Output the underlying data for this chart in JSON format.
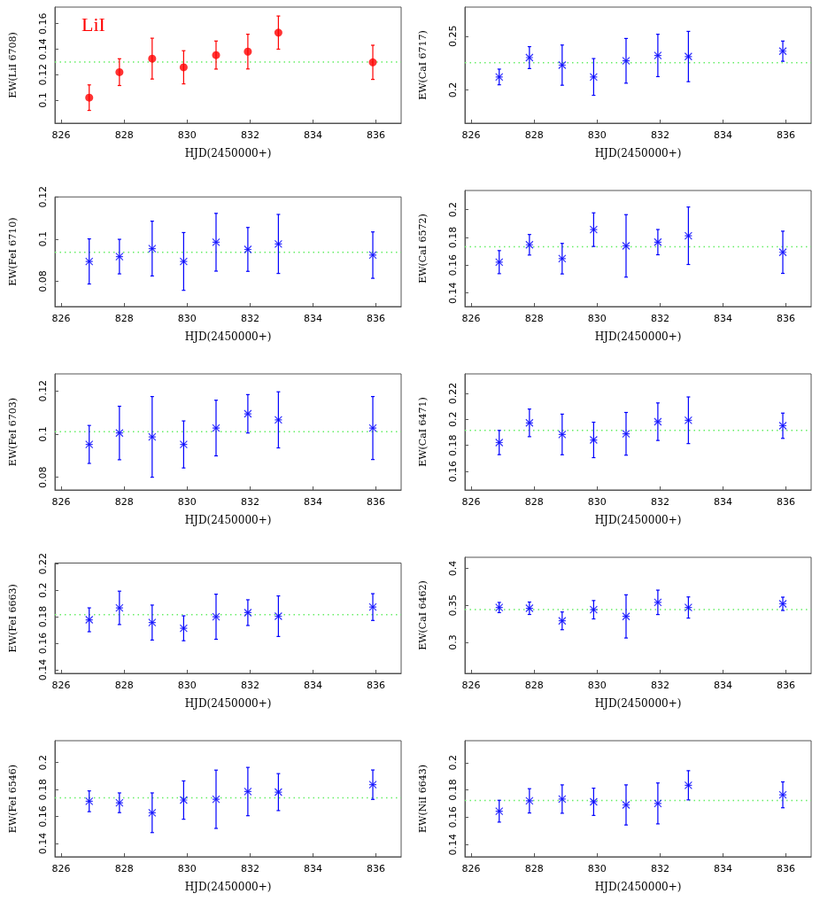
{
  "chart_data": [
    {
      "type": "scatter",
      "annotations": [
        "LiI"
      ],
      "xlabel": "HJD(2450000+)",
      "ylabel": "EW(LiI 6708)",
      "xlim": [
        825.8,
        836.8
      ],
      "xticks": [
        826,
        828,
        830,
        832,
        834,
        836
      ],
      "ylim": [
        0.082,
        0.173
      ],
      "yticks": [
        0.1,
        0.12,
        0.14,
        0.16
      ],
      "marker": "circle",
      "x": [
        826.89,
        827.85,
        828.89,
        829.89,
        830.92,
        831.93,
        832.9,
        835.9
      ],
      "series": [
        {
          "color": "#ff0000",
          "values": [
            0.102,
            0.122,
            0.1326,
            0.1258,
            0.1354,
            0.1381,
            0.153,
            0.1297
          ],
          "errors": [
            0.01,
            0.0105,
            0.016,
            0.013,
            0.011,
            0.0136,
            0.013,
            0.0134
          ]
        }
      ],
      "ref_lines": [
        {
          "axis": "y",
          "value": 0.13,
          "color": "#66ee66",
          "line_style": "dotted"
        }
      ]
    },
    {
      "type": "scatter",
      "xlabel": "HJD(2450000+)",
      "ylabel": "EW(CaI 6717)",
      "xlim": [
        825.8,
        836.8
      ],
      "xticks": [
        826,
        828,
        830,
        832,
        834,
        836
      ],
      "ylim": [
        0.169,
        0.277
      ],
      "yticks": [
        0.2,
        0.25
      ],
      "marker": "cross",
      "x": [
        826.89,
        827.85,
        828.89,
        829.89,
        830.92,
        831.93,
        832.9,
        835.9
      ],
      "series": [
        {
          "color": "#0000ff",
          "values": [
            0.212,
            0.23,
            0.223,
            0.212,
            0.227,
            0.232,
            0.231,
            0.236
          ],
          "errors": [
            0.0073,
            0.0102,
            0.0187,
            0.0171,
            0.0208,
            0.0197,
            0.0234,
            0.0094
          ]
        }
      ],
      "ref_lines": [
        {
          "axis": "y",
          "value": 0.2253,
          "color": "#66ee66",
          "line_style": "dotted"
        }
      ]
    },
    {
      "type": "scatter",
      "xlabel": "HJD(2450000+)",
      "ylabel": "EW(FeI 6710)",
      "xlim": [
        825.8,
        836.8
      ],
      "xticks": [
        826,
        828,
        830,
        832,
        834,
        836
      ],
      "ylim": [
        0.068,
        0.12
      ],
      "yticks": [
        0.08,
        0.1,
        0.12
      ],
      "marker": "cross",
      "x": [
        826.89,
        827.85,
        828.89,
        829.89,
        830.92,
        831.93,
        832.9,
        835.9
      ],
      "series": [
        {
          "color": "#0000ff",
          "values": [
            0.0894,
            0.0917,
            0.0955,
            0.0894,
            0.0985,
            0.0951,
            0.0977,
            0.0924
          ],
          "errors": [
            0.0107,
            0.0082,
            0.013,
            0.0137,
            0.0137,
            0.0104,
            0.014,
            0.011
          ]
        }
      ],
      "ref_lines": [
        {
          "axis": "y",
          "value": 0.0937,
          "color": "#66ee66",
          "line_style": "dotted"
        }
      ]
    },
    {
      "type": "scatter",
      "xlabel": "HJD(2450000+)",
      "ylabel": "EW(CaI 6572)",
      "xlim": [
        825.8,
        836.8
      ],
      "xticks": [
        826,
        828,
        830,
        832,
        834,
        836
      ],
      "ylim": [
        0.1302,
        0.2138
      ],
      "yticks": [
        0.14,
        0.16,
        0.18,
        0.2
      ],
      "marker": "cross",
      "x": [
        826.89,
        827.85,
        828.89,
        829.89,
        830.92,
        831.93,
        832.9,
        835.9
      ],
      "series": [
        {
          "color": "#0000ff",
          "values": [
            0.1622,
            0.1747,
            0.1647,
            0.1856,
            0.1739,
            0.1766,
            0.1812,
            0.1693
          ],
          "errors": [
            0.0083,
            0.0074,
            0.011,
            0.0121,
            0.0225,
            0.0091,
            0.0207,
            0.0152
          ]
        }
      ],
      "ref_lines": [
        {
          "axis": "y",
          "value": 0.1733,
          "color": "#66ee66",
          "line_style": "dotted"
        }
      ]
    },
    {
      "type": "scatter",
      "xlabel": "HJD(2450000+)",
      "ylabel": "EW(FeI 6703)",
      "xlim": [
        825.8,
        836.8
      ],
      "xticks": [
        826,
        828,
        830,
        832,
        834,
        836
      ],
      "ylim": [
        0.0741,
        0.1279
      ],
      "yticks": [
        0.08,
        0.1,
        0.12
      ],
      "marker": "cross",
      "x": [
        826.89,
        827.85,
        828.89,
        829.89,
        830.92,
        831.93,
        832.9,
        835.9
      ],
      "series": [
        {
          "color": "#0000ff",
          "values": [
            0.0952,
            0.1005,
            0.0987,
            0.0952,
            0.1028,
            0.1094,
            0.1066,
            0.1028
          ],
          "errors": [
            0.0088,
            0.0124,
            0.0187,
            0.0109,
            0.0129,
            0.0089,
            0.013,
            0.0146
          ]
        }
      ],
      "ref_lines": [
        {
          "axis": "y",
          "value": 0.1011,
          "color": "#66ee66",
          "line_style": "dotted"
        }
      ]
    },
    {
      "type": "scatter",
      "xlabel": "HJD(2450000+)",
      "ylabel": "EW(CaI 6471)",
      "xlim": [
        825.8,
        836.8
      ],
      "xticks": [
        826,
        828,
        830,
        832,
        834,
        836
      ],
      "ylim": [
        0.1458,
        0.2349
      ],
      "yticks": [
        0.16,
        0.18,
        0.2,
        0.22
      ],
      "marker": "cross",
      "x": [
        826.89,
        827.85,
        828.89,
        829.89,
        830.92,
        831.93,
        832.9,
        835.9
      ],
      "series": [
        {
          "color": "#0000ff",
          "values": [
            0.1822,
            0.1973,
            0.1884,
            0.1842,
            0.1889,
            0.1982,
            0.1993,
            0.1951
          ],
          "errors": [
            0.0093,
            0.0106,
            0.0156,
            0.0136,
            0.0164,
            0.0144,
            0.0179,
            0.0097
          ]
        }
      ],
      "ref_lines": [
        {
          "axis": "y",
          "value": 0.1916,
          "color": "#66ee66",
          "line_style": "dotted"
        }
      ]
    },
    {
      "type": "scatter",
      "xlabel": "HJD(2450000+)",
      "ylabel": "EW(FeI 6663)",
      "xlim": [
        825.8,
        836.8
      ],
      "xticks": [
        826,
        828,
        830,
        832,
        834,
        836
      ],
      "ylim": [
        0.1373,
        0.2205
      ],
      "yticks": [
        0.14,
        0.16,
        0.18,
        0.2,
        0.22
      ],
      "marker": "cross",
      "x": [
        826.89,
        827.85,
        828.89,
        829.89,
        830.92,
        831.93,
        832.9,
        835.9
      ],
      "series": [
        {
          "color": "#0000ff",
          "values": [
            0.1777,
            0.1867,
            0.1756,
            0.1713,
            0.18,
            0.1831,
            0.1804,
            0.1873
          ],
          "errors": [
            0.009,
            0.0126,
            0.0132,
            0.0094,
            0.017,
            0.0097,
            0.0153,
            0.0101
          ]
        }
      ],
      "ref_lines": [
        {
          "axis": "y",
          "value": 0.1815,
          "color": "#66ee66",
          "line_style": "dotted"
        }
      ]
    },
    {
      "type": "scatter",
      "xlabel": "HJD(2450000+)",
      "ylabel": "EW(CaI 6462)",
      "xlim": [
        825.8,
        836.8
      ],
      "xticks": [
        826,
        828,
        830,
        832,
        834,
        836
      ],
      "ylim": [
        0.258,
        0.4149
      ],
      "yticks": [
        0.3,
        0.35,
        0.4
      ],
      "marker": "cross",
      "x": [
        826.89,
        827.85,
        828.89,
        829.89,
        830.92,
        831.93,
        832.9,
        835.9
      ],
      "series": [
        {
          "color": "#0000ff",
          "values": [
            0.347,
            0.346,
            0.329,
            0.344,
            0.335,
            0.354,
            0.347,
            0.352
          ],
          "errors": [
            0.0069,
            0.0084,
            0.012,
            0.0124,
            0.0292,
            0.0165,
            0.0143,
            0.009
          ]
        }
      ],
      "ref_lines": [
        {
          "axis": "y",
          "value": 0.3441,
          "color": "#66ee66",
          "line_style": "dotted"
        }
      ]
    },
    {
      "type": "scatter",
      "xlabel": "HJD(2450000+)",
      "ylabel": "EW(FeI 6546)",
      "xlim": [
        825.8,
        836.8
      ],
      "xticks": [
        826,
        828,
        830,
        832,
        834,
        836
      ],
      "ylim": [
        0.1302,
        0.2162
      ],
      "yticks": [
        0.14,
        0.16,
        0.18,
        0.2
      ],
      "marker": "cross",
      "x": [
        826.89,
        827.85,
        828.89,
        829.89,
        830.92,
        831.93,
        832.9,
        835.9
      ],
      "series": [
        {
          "color": "#0000ff",
          "values": [
            0.1713,
            0.1702,
            0.1628,
            0.1722,
            0.1728,
            0.1785,
            0.1781,
            0.1836
          ],
          "errors": [
            0.0077,
            0.0073,
            0.0147,
            0.0142,
            0.0216,
            0.0179,
            0.0137,
            0.0109
          ]
        }
      ],
      "ref_lines": [
        {
          "axis": "y",
          "value": 0.1738,
          "color": "#66ee66",
          "line_style": "dotted"
        }
      ]
    },
    {
      "type": "scatter",
      "xlabel": "HJD(2450000+)",
      "ylabel": "EW(NiI 6643)",
      "xlim": [
        825.8,
        836.8
      ],
      "xticks": [
        826,
        828,
        830,
        832,
        834,
        836
      ],
      "ylim": [
        0.131,
        0.2161
      ],
      "yticks": [
        0.14,
        0.16,
        0.18,
        0.2
      ],
      "marker": "cross",
      "x": [
        826.89,
        827.85,
        828.89,
        829.89,
        830.92,
        831.93,
        832.9,
        835.9
      ],
      "series": [
        {
          "color": "#0000ff",
          "values": [
            0.1644,
            0.172,
            0.1733,
            0.1713,
            0.169,
            0.1701,
            0.1834,
            0.1764
          ],
          "errors": [
            0.008,
            0.0089,
            0.0104,
            0.01,
            0.0147,
            0.015,
            0.0107,
            0.0095
          ]
        }
      ],
      "ref_lines": [
        {
          "axis": "y",
          "value": 0.1722,
          "color": "#66ee66",
          "line_style": "dotted"
        }
      ]
    }
  ]
}
